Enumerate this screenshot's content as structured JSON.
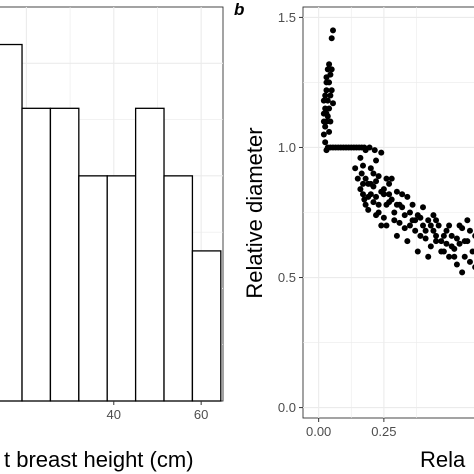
{
  "chart_data": [
    {
      "type": "bar",
      "panel_label": "",
      "xlabel": "t breast height (cm)",
      "ylabel": "",
      "xticks": [
        40,
        60
      ],
      "x_tick_labels": [
        "40",
        "60"
      ],
      "xlim": [
        13.5,
        65
      ],
      "ylim": [
        0,
        10.5
      ],
      "bins": [
        {
          "x0": 12,
          "x1": 19,
          "value": 9.5
        },
        {
          "x0": 19,
          "x1": 25.5,
          "value": 7.8
        },
        {
          "x0": 25.5,
          "x1": 32,
          "value": 7.8
        },
        {
          "x0": 32,
          "x1": 38.5,
          "value": 6.0
        },
        {
          "x0": 38.5,
          "x1": 45,
          "value": 6.0
        },
        {
          "x0": 45,
          "x1": 51.5,
          "value": 7.8
        },
        {
          "x0": 51.5,
          "x1": 58,
          "value": 6.0
        },
        {
          "x0": 58,
          "x1": 64.5,
          "value": 4.0
        }
      ],
      "grid": true
    },
    {
      "type": "scatter",
      "panel_label": "b",
      "xlabel": "Rela",
      "ylabel": "Relative diameter",
      "xticks": [
        0,
        0.25
      ],
      "x_tick_labels": [
        "0.00",
        "0.25"
      ],
      "yticks": [
        0,
        0.5,
        1.0,
        1.5
      ],
      "y_tick_labels": [
        "0.0",
        "0.5",
        "1.0",
        "1.5"
      ],
      "xlim": [
        -0.06,
        0.63
      ],
      "ylim": [
        -0.04,
        1.54
      ],
      "grid": true,
      "points": [
        [
          0.02,
          1.05
        ],
        [
          0.02,
          1.1
        ],
        [
          0.02,
          1.13
        ],
        [
          0.02,
          1.18
        ],
        [
          0.025,
          1.2
        ],
        [
          0.025,
          1.15
        ],
        [
          0.025,
          1.08
        ],
        [
          0.03,
          1.22
        ],
        [
          0.03,
          1.1
        ],
        [
          0.03,
          1.13
        ],
        [
          0.03,
          1.25
        ],
        [
          0.035,
          1.18
        ],
        [
          0.035,
          1.3
        ],
        [
          0.035,
          1.12
        ],
        [
          0.04,
          1.32
        ],
        [
          0.04,
          1.15
        ],
        [
          0.04,
          1.25
        ],
        [
          0.045,
          1.2
        ],
        [
          0.045,
          1.28
        ],
        [
          0.045,
          1.1
        ],
        [
          0.05,
          1.22
        ],
        [
          0.05,
          1.42
        ],
        [
          0.055,
          1.45
        ],
        [
          0.055,
          1.17
        ],
        [
          0.03,
          1.27
        ],
        [
          0.04,
          1.06
        ],
        [
          0.05,
          1.3
        ],
        [
          0.025,
          1.02
        ],
        [
          0.035,
          1.0
        ],
        [
          0.03,
          0.99
        ],
        [
          0.045,
          1.0
        ],
        [
          0.055,
          1.0
        ],
        [
          0.065,
          1.0
        ],
        [
          0.075,
          1.0
        ],
        [
          0.085,
          1.0
        ],
        [
          0.095,
          1.0
        ],
        [
          0.105,
          1.0
        ],
        [
          0.115,
          1.0
        ],
        [
          0.125,
          1.0
        ],
        [
          0.135,
          1.0
        ],
        [
          0.145,
          1.0
        ],
        [
          0.155,
          1.0
        ],
        [
          0.165,
          1.0
        ],
        [
          0.175,
          1.0
        ],
        [
          0.18,
          0.99
        ],
        [
          0.195,
          1.0
        ],
        [
          0.215,
          0.99
        ],
        [
          0.16,
          0.96
        ],
        [
          0.17,
          0.93
        ],
        [
          0.165,
          0.9
        ],
        [
          0.18,
          0.88
        ],
        [
          0.19,
          0.86
        ],
        [
          0.2,
          0.92
        ],
        [
          0.21,
          0.9
        ],
        [
          0.22,
          0.95
        ],
        [
          0.23,
          0.89
        ],
        [
          0.24,
          0.98
        ],
        [
          0.25,
          0.84
        ],
        [
          0.26,
          0.88
        ],
        [
          0.17,
          0.86
        ],
        [
          0.175,
          0.8
        ],
        [
          0.18,
          0.78
        ],
        [
          0.19,
          0.76
        ],
        [
          0.2,
          0.82
        ],
        [
          0.21,
          0.85
        ],
        [
          0.22,
          0.81
        ],
        [
          0.23,
          0.75
        ],
        [
          0.24,
          0.7
        ],
        [
          0.25,
          0.73
        ],
        [
          0.26,
          0.78
        ],
        [
          0.27,
          0.82
        ],
        [
          0.28,
          0.8
        ],
        [
          0.29,
          0.75
        ],
        [
          0.3,
          0.83
        ],
        [
          0.31,
          0.71
        ],
        [
          0.32,
          0.77
        ],
        [
          0.33,
          0.69
        ],
        [
          0.34,
          0.81
        ],
        [
          0.35,
          0.75
        ],
        [
          0.36,
          0.72
        ],
        [
          0.37,
          0.68
        ],
        [
          0.38,
          0.74
        ],
        [
          0.39,
          0.66
        ],
        [
          0.4,
          0.7
        ],
        [
          0.41,
          0.65
        ],
        [
          0.42,
          0.72
        ],
        [
          0.43,
          0.62
        ],
        [
          0.44,
          0.68
        ],
        [
          0.45,
          0.64
        ],
        [
          0.46,
          0.7
        ],
        [
          0.47,
          0.6
        ],
        [
          0.48,
          0.66
        ],
        [
          0.49,
          0.63
        ],
        [
          0.5,
          0.58
        ],
        [
          0.51,
          0.66
        ],
        [
          0.52,
          0.61
        ],
        [
          0.53,
          0.55
        ],
        [
          0.54,
          0.63
        ],
        [
          0.55,
          0.69
        ],
        [
          0.56,
          0.58
        ],
        [
          0.57,
          0.64
        ],
        [
          0.58,
          0.56
        ],
        [
          0.59,
          0.6
        ],
        [
          0.6,
          0.54
        ],
        [
          0.61,
          0.62
        ],
        [
          0.62,
          0.57
        ],
        [
          0.62,
          0.52
        ],
        [
          0.55,
          0.52
        ],
        [
          0.58,
          0.68
        ],
        [
          0.23,
          0.78
        ],
        [
          0.25,
          0.82
        ],
        [
          0.27,
          0.79
        ],
        [
          0.29,
          0.72
        ],
        [
          0.31,
          0.78
        ],
        [
          0.33,
          0.74
        ],
        [
          0.35,
          0.7
        ],
        [
          0.37,
          0.72
        ],
        [
          0.39,
          0.73
        ],
        [
          0.41,
          0.68
        ],
        [
          0.43,
          0.7
        ],
        [
          0.45,
          0.66
        ],
        [
          0.47,
          0.64
        ],
        [
          0.49,
          0.68
        ],
        [
          0.51,
          0.62
        ],
        [
          0.53,
          0.65
        ],
        [
          0.22,
          0.74
        ],
        [
          0.26,
          0.7
        ],
        [
          0.3,
          0.66
        ],
        [
          0.34,
          0.64
        ],
        [
          0.38,
          0.6
        ],
        [
          0.42,
          0.58
        ],
        [
          0.44,
          0.74
        ],
        [
          0.48,
          0.6
        ],
        [
          0.52,
          0.58
        ],
        [
          0.56,
          0.64
        ],
        [
          0.6,
          0.66
        ],
        [
          0.14,
          0.92
        ],
        [
          0.15,
          0.88
        ],
        [
          0.16,
          0.84
        ],
        [
          0.17,
          0.82
        ],
        [
          0.19,
          0.81
        ],
        [
          0.2,
          0.86
        ],
        [
          0.21,
          0.79
        ],
        [
          0.22,
          0.87
        ],
        [
          0.24,
          0.83
        ],
        [
          0.27,
          0.86
        ],
        [
          0.28,
          0.88
        ],
        [
          0.3,
          0.78
        ],
        [
          0.32,
          0.82
        ],
        [
          0.36,
          0.78
        ],
        [
          0.4,
          0.77
        ],
        [
          0.45,
          0.72
        ],
        [
          0.5,
          0.7
        ],
        [
          0.54,
          0.7
        ],
        [
          0.57,
          0.72
        ],
        [
          0.61,
          0.68
        ]
      ]
    }
  ]
}
